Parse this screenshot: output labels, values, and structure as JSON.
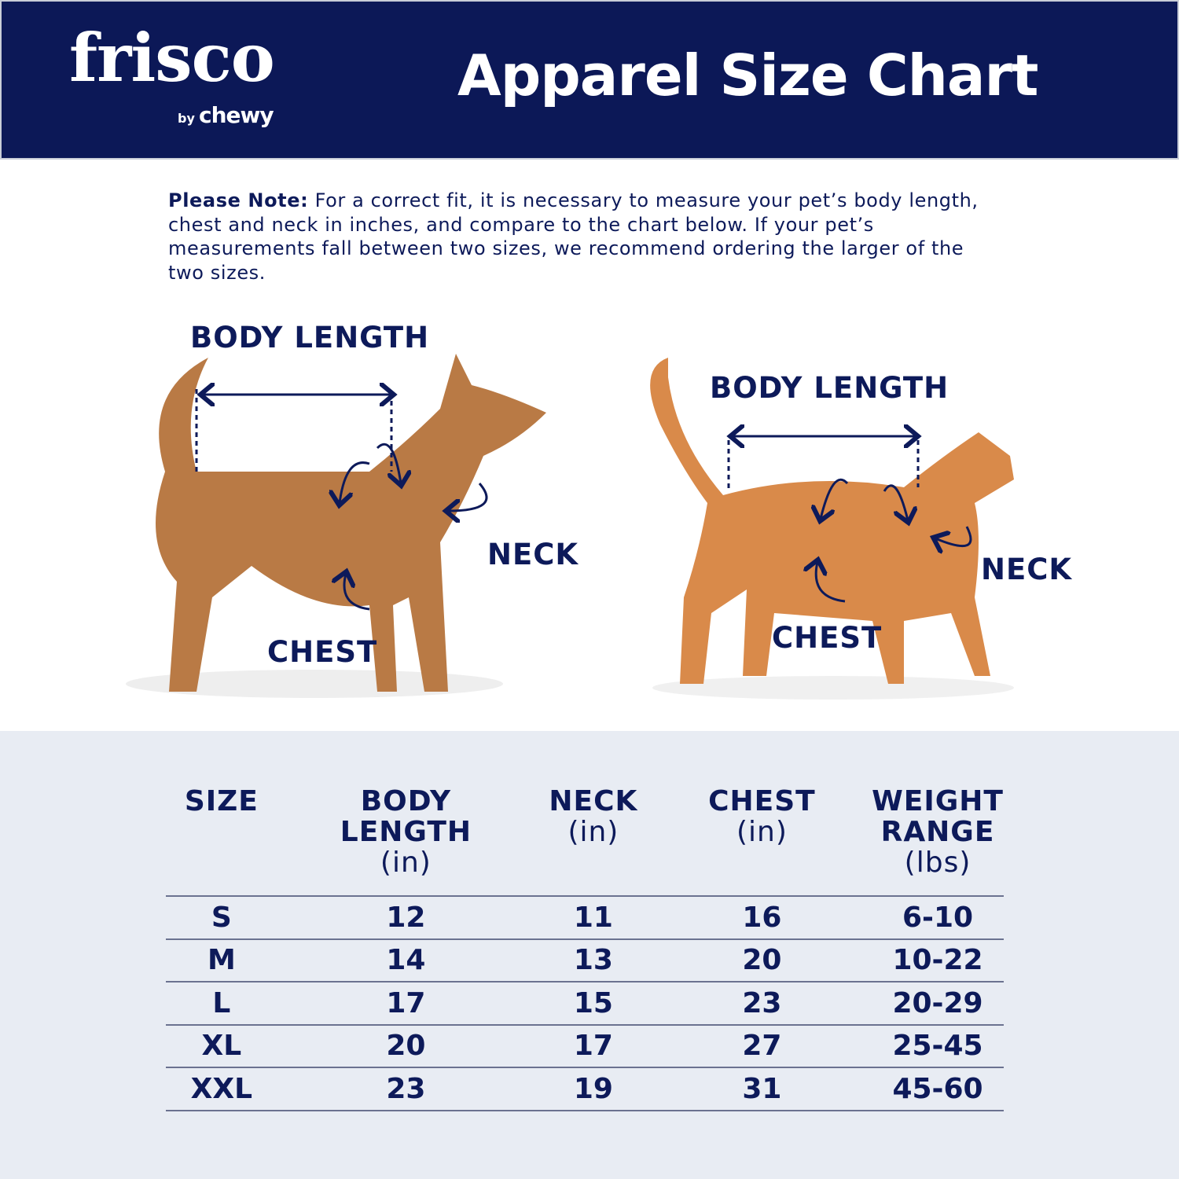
{
  "header": {
    "logo_main": "frisco",
    "logo_by": "by",
    "logo_chewy": "chewy",
    "title": "Apparel Size Chart"
  },
  "note": {
    "label": "Please Note:",
    "text": " For a correct fit, it is necessary to measure your pet’s body length, chest and neck in inches, and compare to the chart below. If your pet’s measurements fall between two sizes, we recommend ordering the larger of the two sizes."
  },
  "dog": {
    "body_length": "BODY LENGTH",
    "neck": "NECK",
    "chest": "CHEST"
  },
  "cat": {
    "body_length": "BODY LENGTH",
    "neck": "NECK",
    "chest": "CHEST"
  },
  "colors": {
    "navy": "#0c1857",
    "lower_bg": "#e8ecf3",
    "dog": "#b97a45",
    "cat": "#d98a4a"
  },
  "table": {
    "headers": [
      {
        "title": "SIZE",
        "unit": ""
      },
      {
        "title": "BODY LENGTH",
        "unit": "(in)"
      },
      {
        "title": "NECK",
        "unit": "(in)"
      },
      {
        "title": "CHEST",
        "unit": "(in)"
      },
      {
        "title": "WEIGHT RANGE",
        "unit": "(lbs)"
      }
    ],
    "rows": [
      [
        "S",
        "12",
        "11",
        "16",
        "6-10"
      ],
      [
        "M",
        "14",
        "13",
        "20",
        "10-22"
      ],
      [
        "L",
        "17",
        "15",
        "23",
        "20-29"
      ],
      [
        "XL",
        "20",
        "17",
        "27",
        "25-45"
      ],
      [
        "XXL",
        "23",
        "19",
        "31",
        "45-60"
      ]
    ]
  }
}
